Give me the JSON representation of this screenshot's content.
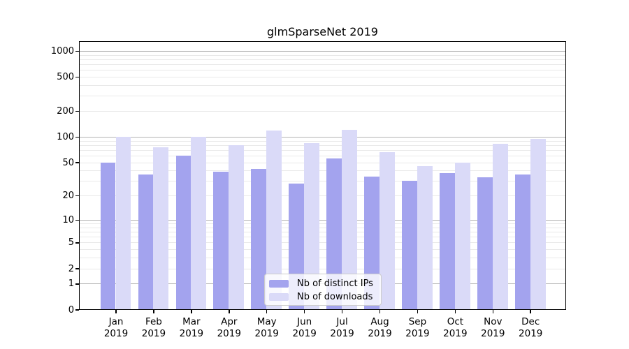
{
  "chart_data": {
    "type": "bar",
    "title": "glmSparseNet 2019",
    "x_categories": [
      "Jan",
      "Feb",
      "Mar",
      "Apr",
      "May",
      "Jun",
      "Jul",
      "Aug",
      "Sep",
      "Oct",
      "Nov",
      "Dec"
    ],
    "x_year": "2019",
    "series": [
      {
        "key": "distinct-ips",
        "name": "Nb of distinct IPs",
        "color": "#a3a3ee",
        "values": [
          50,
          36,
          60,
          39,
          42,
          28,
          56,
          34,
          30,
          37,
          33,
          36
        ]
      },
      {
        "key": "downloads",
        "name": "Nb of downloads",
        "color": "#dadaf8",
        "values": [
          100,
          75,
          100,
          80,
          118,
          84,
          120,
          66,
          45,
          50,
          83,
          95
        ]
      }
    ],
    "y_ticks": [
      0,
      1,
      2,
      5,
      10,
      20,
      50,
      100,
      200,
      500,
      1000
    ],
    "y_scale": "log10(1+v)",
    "ylim": [
      0,
      1300
    ],
    "xlabel": "",
    "ylabel": "",
    "grid": "both",
    "legend_position": "lower center"
  },
  "colors": {
    "grid_major": "#b3b3b3",
    "grid_minor": "#e9e9e9",
    "spine": "#000000",
    "legend_border": "#cccccc"
  }
}
